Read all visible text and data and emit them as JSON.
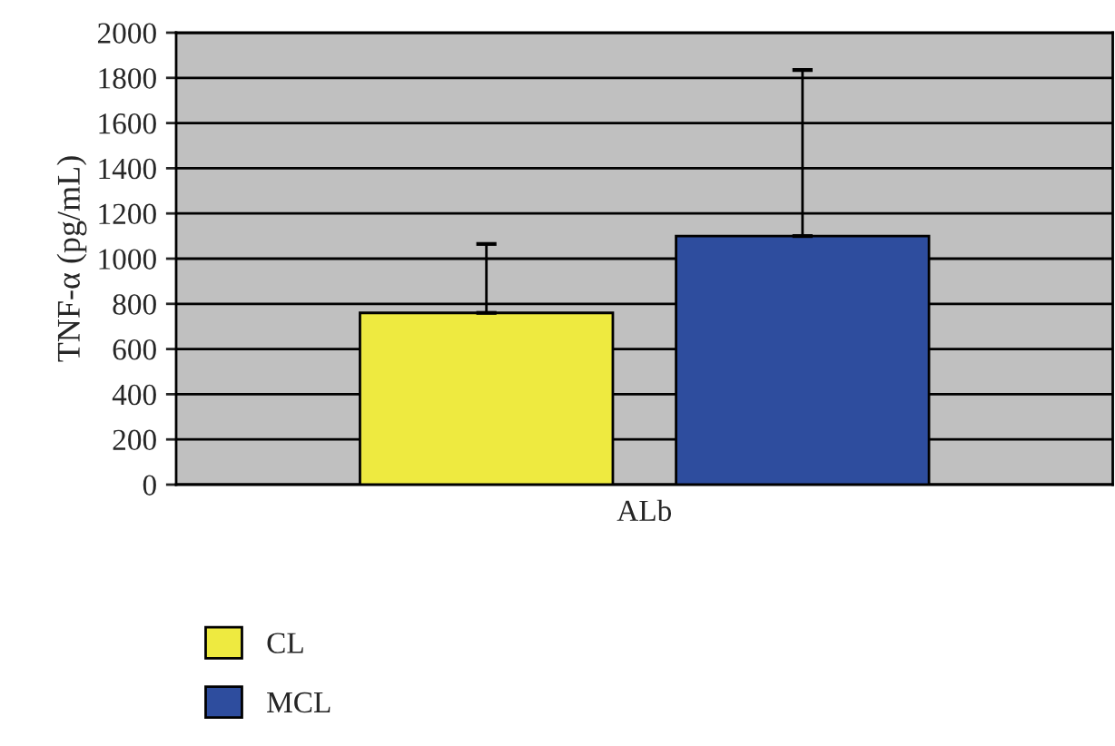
{
  "chart_data": {
    "type": "bar",
    "categories": [
      "ALb"
    ],
    "ylabel": "TNF-α (pg/mL)",
    "series": [
      {
        "name": "CL",
        "color": "#eeea40",
        "values": [
          760
        ],
        "errors": [
          [
            760,
            1065
          ]
        ]
      },
      {
        "name": "MCL",
        "color": "#2e4d9e",
        "values": [
          1100
        ],
        "errors": [
          [
            1100,
            1835
          ]
        ]
      }
    ],
    "ylim": [
      0,
      2000
    ],
    "yticks": [
      0,
      200,
      400,
      600,
      800,
      1000,
      1200,
      1400,
      1600,
      1800,
      2000
    ],
    "grid": "y",
    "legend": "bottom left"
  }
}
